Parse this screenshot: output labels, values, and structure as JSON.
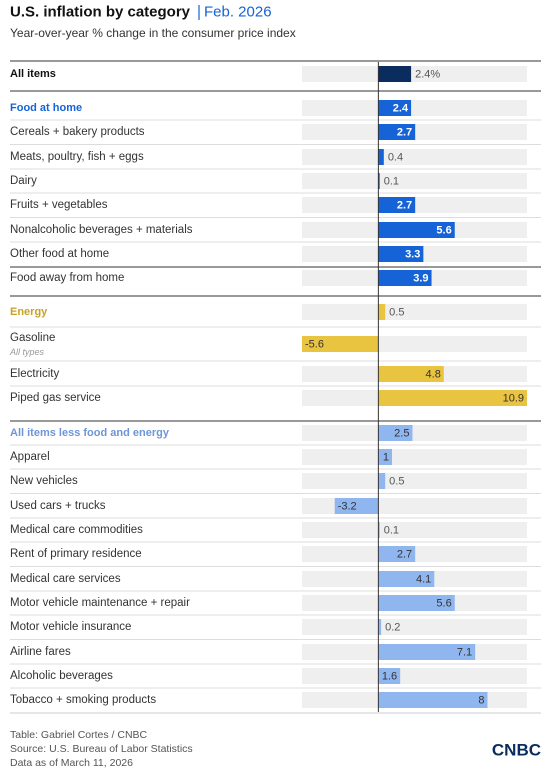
{
  "chart_data": {
    "type": "bar",
    "orientation": "horizontal",
    "title": "U.S. inflation by category",
    "title_date": "Feb. 2026",
    "subtitle": "Year-over-year % change in the consumer price index",
    "categories": [
      "All items",
      "Food at home",
      "Cereals + bakery products",
      "Meats, poultry, fish + eggs",
      "Dairy",
      "Fruits + vegetables",
      "Nonalcoholic beverages + materials",
      "Other food at home",
      "Food away from home",
      "Energy",
      "Gasoline",
      "Electricity",
      "Piped gas service",
      "All items less food and energy",
      "Apparel",
      "New vehicles",
      "Used cars + trucks",
      "Medical care commodities",
      "Rent of primary residence",
      "Medical care services",
      "Motor vehicle maintenance + repair",
      "Motor vehicle insurance",
      "Airline fares",
      "Alcoholic beverages",
      "Tobacco + smoking products"
    ],
    "sublabels": [
      null,
      null,
      null,
      null,
      null,
      null,
      null,
      null,
      null,
      null,
      "All types",
      null,
      null,
      null,
      null,
      null,
      null,
      null,
      null,
      null,
      null,
      null,
      null,
      null,
      null
    ],
    "values": [
      2.4,
      2.4,
      2.7,
      0.4,
      0.1,
      2.7,
      5.6,
      3.3,
      3.9,
      0.5,
      -5.6,
      4.8,
      10.9,
      2.5,
      1,
      0.5,
      -3.2,
      0.1,
      2.7,
      4.1,
      5.6,
      0.2,
      7.1,
      1.6,
      8
    ],
    "value_labels": [
      "2.4%",
      null,
      null,
      null,
      null,
      null,
      null,
      null,
      null,
      null,
      null,
      null,
      null,
      null,
      null,
      null,
      null,
      null,
      null,
      null,
      null,
      null,
      null,
      null,
      null
    ],
    "colors": [
      "#0b2c5f",
      "#1563d6",
      "#1563d6",
      "#1563d6",
      "#1563d6",
      "#1563d6",
      "#1563d6",
      "#1563d6",
      "#1563d6",
      "#e9c440",
      "#e9c440",
      "#e9c440",
      "#e9c440",
      "#8fb6ee",
      "#8fb6ee",
      "#8fb6ee",
      "#8fb6ee",
      "#8fb6ee",
      "#8fb6ee",
      "#8fb6ee",
      "#8fb6ee",
      "#8fb6ee",
      "#8fb6ee",
      "#8fb6ee",
      "#8fb6ee"
    ],
    "label_colors": [
      "#111111",
      "#1563d6",
      null,
      null,
      null,
      null,
      null,
      null,
      null,
      "#c9a128",
      null,
      null,
      null,
      "#6d95d8",
      null,
      null,
      null,
      null,
      null,
      null,
      null,
      null,
      null,
      null,
      null
    ],
    "xlim": [
      -5.6,
      10.9
    ],
    "footer": [
      "Table: Gabriel Cortes / CNBC",
      "Source: U.S. Bureau of Labor Statistics",
      "Data as of March 11, 2026"
    ],
    "brand": "CNBC"
  }
}
